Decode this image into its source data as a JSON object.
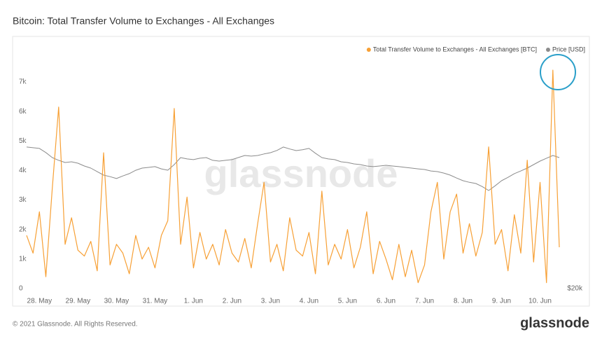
{
  "chart_data": {
    "type": "line",
    "title": "Bitcoin: Total Transfer Volume to Exchanges - All Exchanges",
    "watermark": "glassnode",
    "categories": [
      null,
      null,
      "28. May",
      null,
      null,
      null,
      null,
      null,
      "29. May",
      null,
      null,
      null,
      null,
      null,
      "30. May",
      null,
      null,
      null,
      null,
      null,
      "31. May",
      null,
      null,
      null,
      null,
      null,
      "1. Jun",
      null,
      null,
      null,
      null,
      null,
      "2. Jun",
      null,
      null,
      null,
      null,
      null,
      "3. Jun",
      null,
      null,
      null,
      null,
      null,
      "4. Jun",
      null,
      null,
      null,
      null,
      null,
      "5. Jun",
      null,
      null,
      null,
      null,
      null,
      "6. Jun",
      null,
      null,
      null,
      null,
      null,
      "7. Jun",
      null,
      null,
      null,
      null,
      null,
      "8. Jun",
      null,
      null,
      null,
      null,
      null,
      "9. Jun",
      null,
      null,
      null,
      null,
      null,
      "10. Jun",
      null,
      null,
      null
    ],
    "series": [
      {
        "name": "Total Transfer Volume to Exchanges - All Exchanges [BTC]",
        "color": "#f7a035",
        "values": [
          1800,
          1200,
          2600,
          400,
          3400,
          6150,
          1500,
          2400,
          1300,
          1100,
          1600,
          600,
          4600,
          800,
          1500,
          1200,
          500,
          1800,
          1000,
          1400,
          700,
          1800,
          2300,
          6100,
          1500,
          3100,
          700,
          1900,
          1000,
          1500,
          800,
          2000,
          1200,
          900,
          1700,
          700,
          2200,
          3600,
          900,
          1500,
          600,
          2400,
          1300,
          1100,
          1900,
          500,
          3300,
          800,
          1500,
          1000,
          2000,
          700,
          1400,
          2600,
          500,
          1600,
          1000,
          300,
          1500,
          400,
          1300,
          200,
          800,
          2600,
          3600,
          1000,
          2600,
          3200,
          1200,
          2200,
          1100,
          1900,
          4800,
          1500,
          2000,
          600,
          2500,
          1200,
          4350,
          900,
          3600,
          200,
          7400,
          1400
        ]
      },
      {
        "name": "Price [USD]",
        "color": "#8c8c8c",
        "axis": "y2",
        "values": [
          39980,
          39880,
          39780,
          39200,
          38490,
          38100,
          37800,
          37900,
          37700,
          37300,
          37010,
          36500,
          36020,
          35800,
          35530,
          35900,
          36220,
          36700,
          37010,
          37100,
          37210,
          36900,
          36710,
          37500,
          38490,
          38300,
          38200,
          38400,
          38490,
          38100,
          37990,
          38100,
          38200,
          38500,
          38790,
          38700,
          38790,
          39000,
          39180,
          39500,
          39980,
          39700,
          39480,
          39600,
          39780,
          39100,
          38490,
          38300,
          38200,
          37900,
          37800,
          37600,
          37500,
          37300,
          37210,
          37300,
          37400,
          37300,
          37210,
          37100,
          37010,
          36900,
          36810,
          36600,
          36510,
          36300,
          36020,
          35600,
          35230,
          35000,
          34830,
          34400,
          33840,
          34500,
          35230,
          35700,
          36220,
          36600,
          37010,
          37500,
          37990,
          38400,
          38790,
          38490
        ]
      }
    ],
    "ylim": [
      0,
      8400
    ],
    "yticks": [
      0,
      {
        "value": 1000,
        "label": "1k"
      },
      {
        "value": 2000,
        "label": "2k"
      },
      {
        "value": 3000,
        "label": "3k"
      },
      {
        "value": 4000,
        "label": "4k"
      },
      {
        "value": 5000,
        "label": "5k"
      },
      {
        "value": 6000,
        "label": "6k"
      },
      {
        "value": 7000,
        "label": "7k"
      }
    ],
    "y2lim": [
      20000,
      55000
    ],
    "y2ticks": [
      {
        "value": 20000,
        "label": "$20k"
      }
    ],
    "legend": "top-right"
  },
  "footer": {
    "copyright": "© 2021 Glassnode. All Rights Reserved.",
    "brand": "glassnode"
  }
}
